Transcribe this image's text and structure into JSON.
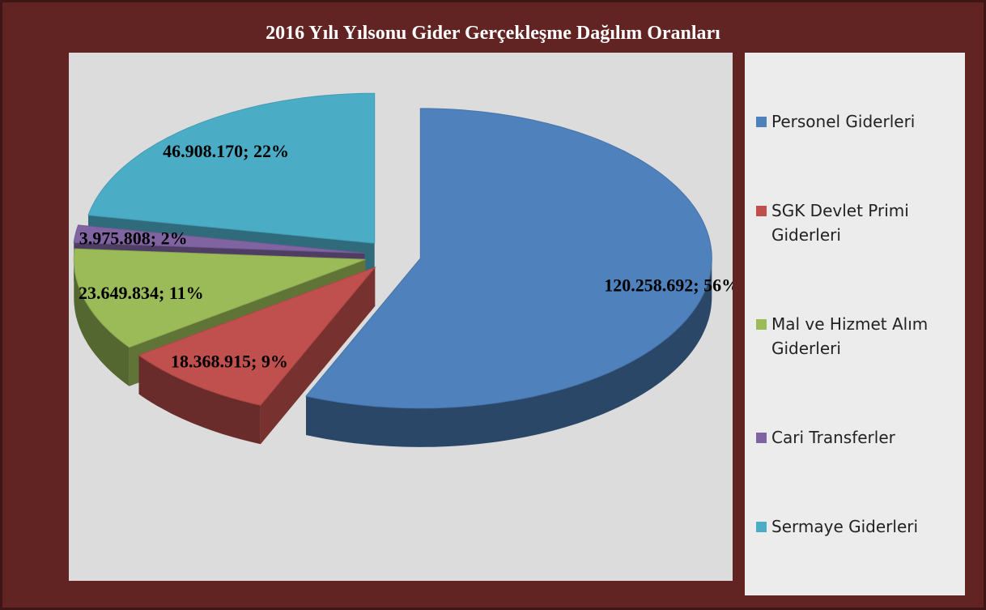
{
  "chart_data": {
    "type": "pie3d",
    "title": "2016 Yılı Yılsonu Gider Gerçekleşme Dağılım Oranları",
    "categories": [
      "Personel Giderleri",
      "SGK Devlet Primi Giderleri",
      "Mal ve Hizmet Alım Giderleri",
      "Cari Transferler",
      "Sermaye Giderleri"
    ],
    "values": [
      120258692,
      18368915,
      23649834,
      3975808,
      46908170
    ],
    "value_labels": [
      "120.258.692; 56%",
      "18.368.915; 9%",
      "23.649.834; 11%",
      "3.975.808; 2%",
      "46.908.170; 22%"
    ],
    "colors": [
      "#4f81bd",
      "#c0504d",
      "#9bbb59",
      "#8064a2",
      "#4bacc6"
    ],
    "legend": "right"
  }
}
